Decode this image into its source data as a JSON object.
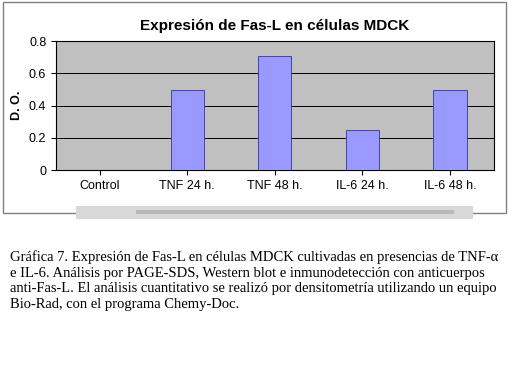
{
  "chart_data": {
    "type": "bar",
    "title": "Expresión de Fas-L en células MDCK",
    "y_label": "D. O.",
    "categories": [
      "Control",
      "TNF 24 h.",
      "TNF 48 h.",
      "IL-6 24 h.",
      "IL-6 48 h."
    ],
    "values": [
      0,
      0.5,
      0.71,
      0.25,
      0.5
    ],
    "color": "#9999ff",
    "ylim": [
      0,
      0.8
    ],
    "yticks": [
      0,
      0.2,
      0.4,
      0.6,
      0.8
    ],
    "grid": true,
    "caption": "Gráfica 7. Expresión de Fas-L en células MDCK cultivadas en presencias de TNF-α e IL-6. Análisis por PAGE-SDS, Western blot e inmunodetección con anticuerpos anti-Fas-L. El análisis cuantitativo se realizó por densitometría utilizando un equipo Bio-Rad, con el programa Chemy-Doc."
  }
}
